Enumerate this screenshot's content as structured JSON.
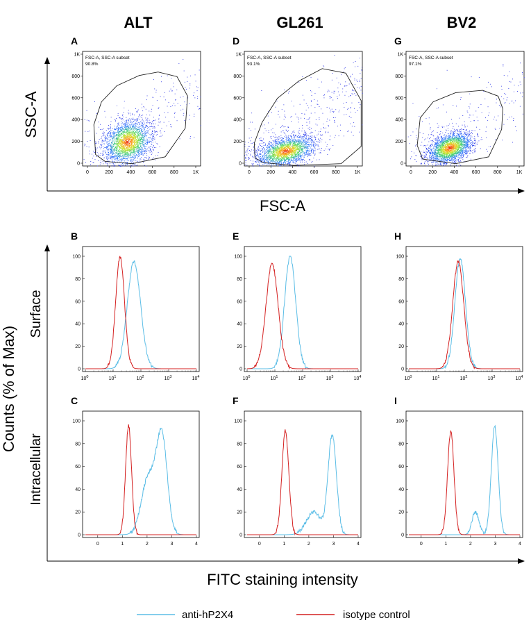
{
  "columns": [
    "ALT",
    "GL261",
    "BV2"
  ],
  "scatter_axis": {
    "ylabel": "SSC-A",
    "xlabel": "FSC-A"
  },
  "hist_axis": {
    "ylabel": "Counts (% of Max)",
    "xlabel": "FITC staining intensity"
  },
  "row_labels": {
    "surface": "Surface",
    "intracellular": "Intracellular"
  },
  "legend": [
    {
      "label": "anti-hP2X4",
      "color": "#5bbde6"
    },
    {
      "label": "isotype control",
      "color": "#d42020"
    }
  ],
  "chart_data": [
    {
      "type": "scatter",
      "panel": "A",
      "cell_line": "ALT",
      "title": "ALT",
      "xlabel": "FSC-A",
      "ylabel": "SSC-A",
      "x_ticks": [
        "0",
        "200",
        "400",
        "600",
        "800",
        "1K"
      ],
      "y_ticks": [
        "0",
        "200",
        "400",
        "600",
        "800",
        "1K"
      ],
      "xlim": [
        0,
        1000
      ],
      "ylim": [
        0,
        1000
      ],
      "gate_name": "FSC-A, SSC-A subset",
      "gate_percent": "90.8%",
      "gate_polygon": [
        [
          190,
          40
        ],
        [
          110,
          100
        ],
        [
          95,
          360
        ],
        [
          160,
          560
        ],
        [
          290,
          700
        ],
        [
          480,
          790
        ],
        [
          640,
          820
        ],
        [
          800,
          780
        ],
        [
          890,
          610
        ],
        [
          870,
          330
        ],
        [
          700,
          80
        ],
        [
          420,
          20
        ],
        [
          190,
          40
        ]
      ],
      "population": {
        "center": [
          380,
          210
        ],
        "spread": [
          110,
          90
        ],
        "rotation_deg": 35,
        "events": 2600,
        "background_events": 250
      }
    },
    {
      "type": "scatter",
      "panel": "D",
      "cell_line": "GL261",
      "title": "GL261",
      "xlabel": "FSC-A",
      "ylabel": "SSC-A",
      "x_ticks": [
        "0",
        "200",
        "400",
        "600",
        "800",
        "1K"
      ],
      "y_ticks": [
        "0",
        "200",
        "400",
        "600",
        "800",
        "1K"
      ],
      "xlim": [
        0,
        1000
      ],
      "ylim": [
        0,
        1000
      ],
      "gate_name": "FSC-A, SSC-A subset",
      "gate_percent": "93.1%",
      "gate_polygon": [
        [
          160,
          30
        ],
        [
          90,
          70
        ],
        [
          85,
          200
        ],
        [
          150,
          380
        ],
        [
          280,
          590
        ],
        [
          460,
          740
        ],
        [
          660,
          850
        ],
        [
          860,
          810
        ],
        [
          990,
          570
        ],
        [
          990,
          170
        ],
        [
          820,
          20
        ],
        [
          420,
          5
        ],
        [
          160,
          30
        ]
      ],
      "population": {
        "center": [
          350,
          130
        ],
        "spread": [
          130,
          60
        ],
        "rotation_deg": 15,
        "events": 2400,
        "background_events": 400
      }
    },
    {
      "type": "scatter",
      "panel": "G",
      "cell_line": "BV2",
      "title": "BV2",
      "xlabel": "FSC-A",
      "ylabel": "SSC-A",
      "x_ticks": [
        "0",
        "200",
        "400",
        "600",
        "800",
        "1K"
      ],
      "y_ticks": [
        "0",
        "200",
        "400",
        "600",
        "800",
        "1K"
      ],
      "xlim": [
        0,
        1000
      ],
      "ylim": [
        0,
        1000
      ],
      "gate_name": "FSC-A, SSC-A subset",
      "gate_percent": "97.1%",
      "gate_polygon": [
        [
          140,
          60
        ],
        [
          95,
          180
        ],
        [
          120,
          420
        ],
        [
          230,
          560
        ],
        [
          420,
          640
        ],
        [
          650,
          660
        ],
        [
          780,
          610
        ],
        [
          820,
          500
        ],
        [
          810,
          320
        ],
        [
          700,
          80
        ],
        [
          420,
          20
        ],
        [
          140,
          60
        ]
      ],
      "population": {
        "center": [
          370,
          160
        ],
        "spread": [
          100,
          60
        ],
        "rotation_deg": 25,
        "events": 2500,
        "background_events": 200
      }
    },
    {
      "type": "line",
      "panel": "B",
      "cell_line": "ALT",
      "stain": "Surface",
      "scale": "log",
      "xlim": [
        0,
        4
      ],
      "ylim": [
        0,
        100
      ],
      "x_ticks": [
        "0",
        "1",
        "2",
        "3",
        "4"
      ],
      "y_ticks": [
        "0",
        "20",
        "40",
        "60",
        "80",
        "100"
      ],
      "series": [
        {
          "name": "anti-hP2X4",
          "color": "#5bbde6",
          "peaks": [
            {
              "mu": 1.75,
              "sigma": 0.24,
              "height": 95
            }
          ]
        },
        {
          "name": "isotype control",
          "color": "#d42020",
          "peaks": [
            {
              "mu": 1.25,
              "sigma": 0.16,
              "height": 99
            }
          ]
        }
      ]
    },
    {
      "type": "line",
      "panel": "E",
      "cell_line": "GL261",
      "stain": "Surface",
      "scale": "log",
      "xlim": [
        0,
        4
      ],
      "ylim": [
        0,
        100
      ],
      "x_ticks": [
        "0",
        "1",
        "2",
        "3",
        "4"
      ],
      "y_ticks": [
        "0",
        "20",
        "40",
        "60",
        "80",
        "100"
      ],
      "series": [
        {
          "name": "anti-hP2X4",
          "color": "#5bbde6",
          "peaks": [
            {
              "mu": 1.55,
              "sigma": 0.2,
              "height": 100
            }
          ]
        },
        {
          "name": "isotype control",
          "color": "#d42020",
          "peaks": [
            {
              "mu": 0.9,
              "sigma": 0.22,
              "height": 93
            }
          ]
        }
      ]
    },
    {
      "type": "line",
      "panel": "H",
      "cell_line": "BV2",
      "stain": "Surface",
      "scale": "log",
      "xlim": [
        0,
        4
      ],
      "ylim": [
        0,
        100
      ],
      "x_ticks": [
        "0",
        "1",
        "2",
        "3",
        "4"
      ],
      "y_ticks": [
        "0",
        "20",
        "40",
        "60",
        "80",
        "100"
      ],
      "series": [
        {
          "name": "anti-hP2X4",
          "color": "#5bbde6",
          "peaks": [
            {
              "mu": 1.85,
              "sigma": 0.19,
              "height": 98
            }
          ]
        },
        {
          "name": "isotype control",
          "color": "#d42020",
          "peaks": [
            {
              "mu": 1.78,
              "sigma": 0.2,
              "height": 95
            }
          ]
        }
      ]
    },
    {
      "type": "line",
      "panel": "C",
      "cell_line": "ALT",
      "stain": "Intracellular",
      "scale": "linear",
      "xlim": [
        -0.5,
        4
      ],
      "ylim": [
        0,
        100
      ],
      "x_ticks": [
        "0",
        "1",
        "2",
        "3",
        "4"
      ],
      "y_ticks": [
        "0",
        "20",
        "40",
        "60",
        "80",
        "100"
      ],
      "series": [
        {
          "name": "anti-hP2X4",
          "color": "#5bbde6",
          "peaks": [
            {
              "mu": 2.6,
              "sigma": 0.22,
              "height": 93
            },
            {
              "mu": 2.05,
              "sigma": 0.28,
              "height": 55
            }
          ]
        },
        {
          "name": "isotype control",
          "color": "#d42020",
          "peaks": [
            {
              "mu": 1.25,
              "sigma": 0.12,
              "height": 96
            }
          ]
        }
      ]
    },
    {
      "type": "line",
      "panel": "F",
      "cell_line": "GL261",
      "stain": "Intracellular",
      "scale": "linear",
      "xlim": [
        -0.5,
        4
      ],
      "ylim": [
        0,
        100
      ],
      "x_ticks": [
        "0",
        "1",
        "2",
        "3",
        "4"
      ],
      "y_ticks": [
        "0",
        "20",
        "40",
        "60",
        "80",
        "100"
      ],
      "series": [
        {
          "name": "anti-hP2X4",
          "color": "#5bbde6",
          "peaks": [
            {
              "mu": 2.95,
              "sigma": 0.17,
              "height": 88
            },
            {
              "mu": 2.2,
              "sigma": 0.3,
              "height": 20
            }
          ]
        },
        {
          "name": "isotype control",
          "color": "#d42020",
          "peaks": [
            {
              "mu": 1.05,
              "sigma": 0.14,
              "height": 91
            }
          ]
        }
      ]
    },
    {
      "type": "line",
      "panel": "I",
      "cell_line": "BV2",
      "stain": "Intracellular",
      "scale": "linear",
      "xlim": [
        -0.5,
        4
      ],
      "ylim": [
        0,
        100
      ],
      "x_ticks": [
        "0",
        "1",
        "2",
        "3",
        "4"
      ],
      "y_ticks": [
        "0",
        "20",
        "40",
        "60",
        "80",
        "100"
      ],
      "series": [
        {
          "name": "anti-hP2X4",
          "color": "#5bbde6",
          "peaks": [
            {
              "mu": 2.98,
              "sigma": 0.14,
              "height": 95
            },
            {
              "mu": 2.2,
              "sigma": 0.14,
              "height": 20
            }
          ]
        },
        {
          "name": "isotype control",
          "color": "#d42020",
          "peaks": [
            {
              "mu": 1.2,
              "sigma": 0.13,
              "height": 91
            }
          ]
        }
      ]
    }
  ]
}
